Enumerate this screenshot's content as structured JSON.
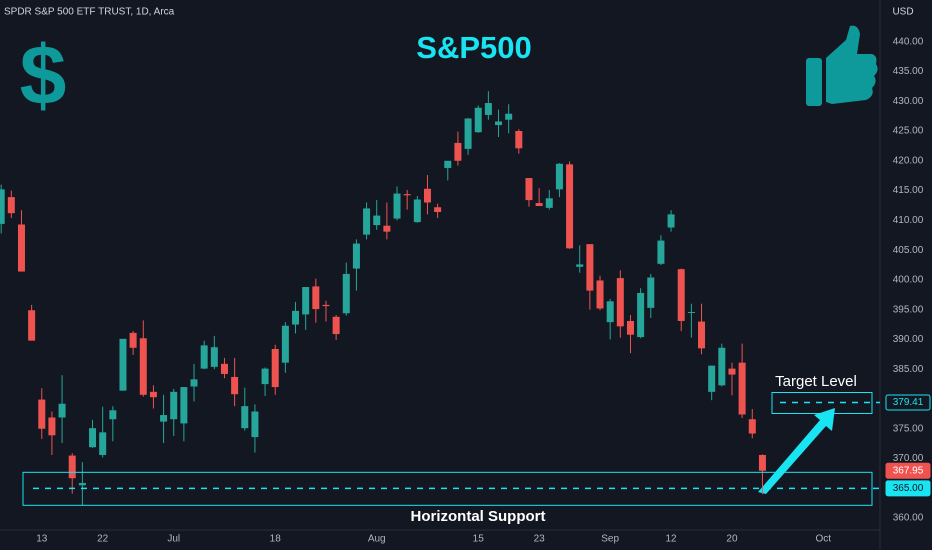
{
  "header": "SPDR S&P 500 ETF TRUST, 1D, Arca",
  "currency": "USD",
  "chart_data": {
    "type": "candlestick",
    "title": "S&P500",
    "icon": "$",
    "up_color": "#26a69a",
    "down_color": "#ef5350",
    "annotation_color": "#18e4f2",
    "categories": [
      null,
      null,
      null,
      null,
      "13",
      null,
      null,
      null,
      null,
      null,
      "22",
      null,
      null,
      null,
      null,
      null,
      null,
      "Jul",
      null,
      null,
      null,
      null,
      null,
      null,
      null,
      null,
      null,
      "18",
      null,
      null,
      null,
      null,
      null,
      null,
      null,
      null,
      null,
      "Aug",
      null,
      null,
      null,
      null,
      null,
      null,
      null,
      null,
      null,
      "15",
      null,
      null,
      null,
      null,
      null,
      "23",
      null,
      null,
      null,
      null,
      null,
      null,
      "Sep",
      null,
      null,
      null,
      null,
      null,
      "12",
      null,
      null,
      null,
      null,
      null,
      "20",
      null,
      null,
      null,
      null,
      null,
      null,
      null,
      null,
      "Oct",
      null,
      null,
      null,
      null
    ],
    "open": [
      409.4,
      413.9,
      409.3,
      394.9,
      379.9,
      376.9,
      376.9,
      370.5,
      365.5,
      371.9,
      370.6,
      376.6,
      381.4,
      391.1,
      390.2,
      381.2,
      376.2,
      376.6,
      375.9,
      382.1,
      385.1,
      385.4,
      385.9,
      383.7,
      375.1,
      373.6,
      382.5,
      388.4,
      386.1,
      392.5,
      394.2,
      398.9,
      395.8,
      393.8,
      394.4,
      401.9,
      407.6,
      409.2,
      409.1,
      410.3,
      414.4,
      409.7,
      415.3,
      412.2,
      418.8,
      423.0,
      422.0,
      424.8,
      427.7,
      426.0,
      426.9,
      425.0,
      417.1,
      412.9,
      412.1,
      415.2,
      419.4,
      402.2,
      406.0,
      399.9,
      392.9,
      400.3,
      393.1,
      390.4,
      395.3,
      402.7,
      408.8,
      401.8,
      394.5,
      393.0,
      381.2,
      382.3,
      385.1,
      386.1,
      376.6,
      370.6,
      null,
      null,
      null,
      null,
      null,
      null,
      null,
      null,
      null,
      null
    ],
    "high": [
      416.0,
      415.0,
      411.7,
      395.8,
      381.8,
      377.9,
      384.0,
      370.9,
      369.4,
      376.5,
      378.7,
      378.8,
      390.1,
      391.4,
      393.2,
      382.3,
      380.7,
      381.7,
      382.0,
      385.9,
      389.8,
      390.6,
      386.9,
      386.9,
      381.9,
      379.1,
      385.3,
      389.1,
      392.9,
      396.3,
      398.8,
      400.2,
      396.5,
      394.1,
      402.9,
      406.8,
      413.0,
      413.4,
      413.0,
      415.7,
      415.1,
      414.1,
      417.6,
      412.8,
      419.8,
      424.9,
      427.2,
      429.3,
      431.7,
      428.6,
      429.5,
      425.3,
      417.1,
      415.4,
      415.1,
      419.6,
      419.9,
      405.8,
      406.0,
      400.7,
      396.8,
      401.6,
      394.1,
      398.6,
      401.0,
      407.5,
      411.7,
      401.9,
      396.0,
      396.0,
      385.6,
      389.3,
      386.1,
      389.3,
      378.3,
      370.7,
      null,
      null,
      null,
      null,
      null,
      null,
      null,
      null,
      null,
      null
    ],
    "low": [
      407.8,
      410.4,
      401.4,
      389.8,
      373.3,
      370.6,
      372.6,
      364.1,
      362.2,
      371.8,
      370.2,
      372.9,
      381.4,
      387.4,
      380.4,
      378.4,
      372.6,
      373.8,
      372.9,
      379.6,
      385.0,
      385.0,
      383.5,
      378.8,
      374.7,
      371.0,
      380.5,
      380.7,
      384.4,
      391.0,
      391.6,
      392.8,
      393.0,
      389.9,
      394.0,
      398.2,
      406.8,
      408.4,
      406.8,
      410.0,
      411.8,
      409.6,
      411.0,
      410.4,
      416.7,
      419.2,
      421.0,
      424.7,
      426.9,
      424.0,
      424.6,
      421.2,
      412.3,
      412.4,
      411.8,
      413.9,
      405.2,
      401.2,
      395.0,
      394.9,
      390.0,
      390.3,
      387.7,
      390.2,
      393.6,
      402.5,
      408.1,
      391.4,
      390.3,
      387.5,
      379.8,
      382.1,
      380.6,
      376.8,
      373.4,
      364.0,
      null,
      null,
      null,
      null,
      null,
      null,
      null,
      null,
      null,
      null
    ],
    "close": [
      415.2,
      411.2,
      401.4,
      389.8,
      375.0,
      373.9,
      379.2,
      366.7,
      365.9,
      375.1,
      374.4,
      378.1,
      390.1,
      388.6,
      380.7,
      380.3,
      377.3,
      381.2,
      382.0,
      383.3,
      389.0,
      388.7,
      384.2,
      380.8,
      378.8,
      377.9,
      385.1,
      382.0,
      392.3,
      394.8,
      398.8,
      395.1,
      395.6,
      390.9,
      401.0,
      406.1,
      412.0,
      410.8,
      408.1,
      414.5,
      414.2,
      413.5,
      413.0,
      411.4,
      420.0,
      420.0,
      427.1,
      428.9,
      429.7,
      426.6,
      427.9,
      422.1,
      413.4,
      412.4,
      413.7,
      419.5,
      405.3,
      402.6,
      398.2,
      395.2,
      396.4,
      392.2,
      390.8,
      397.8,
      400.4,
      406.6,
      411.0,
      393.1,
      394.6,
      388.5,
      385.6,
      388.6,
      384.1,
      377.4,
      374.2,
      367.95,
      null,
      null,
      null,
      null,
      null,
      null,
      null,
      null,
      null,
      null
    ],
    "ylim": [
      358,
      447
    ],
    "yticks": [
      {
        "value": 360,
        "label": "360.00"
      },
      {
        "value": 365,
        "label": "365.00"
      },
      {
        "value": 370,
        "label": "370.00"
      },
      {
        "value": 375,
        "label": "375.00"
      },
      {
        "value": 380,
        "label": "380.00"
      },
      {
        "value": 385,
        "label": "385.00"
      },
      {
        "value": 390,
        "label": "390.00"
      },
      {
        "value": 395,
        "label": "395.00"
      },
      {
        "value": 400,
        "label": "400.00"
      },
      {
        "value": 405,
        "label": "405.00"
      },
      {
        "value": 410,
        "label": "410.00"
      },
      {
        "value": 415,
        "label": "415.00"
      },
      {
        "value": 420,
        "label": "420.00"
      },
      {
        "value": 425,
        "label": "425.00"
      },
      {
        "value": 430,
        "label": "430.00"
      },
      {
        "value": 435,
        "label": "435.00"
      },
      {
        "value": 440,
        "label": "440.00"
      }
    ],
    "grid": false,
    "annotations": [
      {
        "text": "Target Level",
        "value": 379.41
      },
      {
        "text": "Horizontal Support",
        "value": 365,
        "label": "365.00"
      }
    ]
  }
}
